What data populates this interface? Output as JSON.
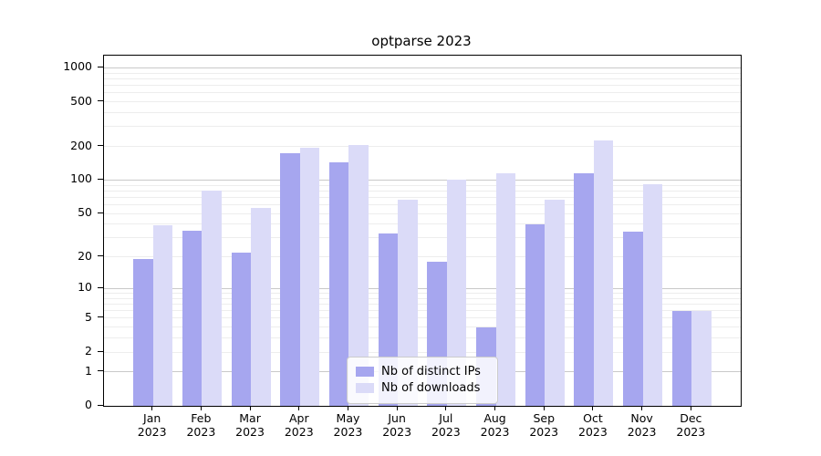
{
  "chart_data": {
    "type": "bar",
    "title": "optparse 2023",
    "categories": [
      "Jan",
      "Feb",
      "Mar",
      "Apr",
      "May",
      "Jun",
      "Jul",
      "Aug",
      "Sep",
      "Oct",
      "Nov",
      "Dec"
    ],
    "category_sublabel": "2023",
    "series": [
      {
        "name": "Nb of distinct IPs",
        "color": "#a6a6ef",
        "values": [
          19,
          35,
          22,
          175,
          145,
          33,
          18,
          4,
          40,
          115,
          34,
          6
        ]
      },
      {
        "name": "Nb of downloads",
        "color": "#dbdbf8",
        "values": [
          39,
          80,
          56,
          195,
          207,
          66,
          100,
          114,
          66,
          227,
          92,
          6
        ]
      }
    ],
    "yscale": "log1p",
    "ylim": [
      0,
      1285
    ],
    "yticks": [
      0,
      1,
      2,
      5,
      10,
      20,
      50,
      100,
      200,
      500,
      1000
    ],
    "major_gridlines": [
      1,
      10,
      100,
      1000
    ],
    "minor_gridline_decades": [
      1,
      10,
      100
    ],
    "xlabel": "",
    "ylabel": "",
    "legend_position": "bottom-center",
    "grid": "on"
  }
}
